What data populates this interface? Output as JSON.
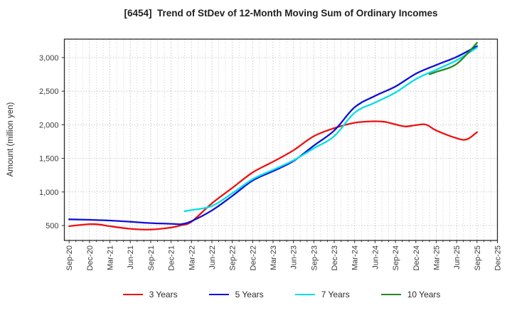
{
  "chart_data": {
    "type": "line",
    "title": "[6454]  Trend of StDev of 12-Month Moving Sum of Ordinary Incomes",
    "ylabel": "Amount (million yen)",
    "x_unit": "months since Sep-2020",
    "x_tick_step_months": 3,
    "x_tick_labels": [
      "Sep-20",
      "Dec-20",
      "Mar-21",
      "Jun-21",
      "Sep-21",
      "Dec-21",
      "Mar-22",
      "Jun-22",
      "Sep-22",
      "Dec-22",
      "Mar-23",
      "Jun-23",
      "Sep-23",
      "Dec-23",
      "Mar-24",
      "Jun-24",
      "Sep-24",
      "Dec-24",
      "Mar-25",
      "Jun-25",
      "Sep-25",
      "Dec-25"
    ],
    "y_ticks": [
      500,
      1000,
      1500,
      2000,
      2500,
      3000
    ],
    "y_tick_labels": [
      "500",
      "1,000",
      "1,500",
      "2,000",
      "2,500",
      "3,000"
    ],
    "xlim_months": [
      -0.7,
      63.0
    ],
    "ylim": [
      278,
      3275
    ],
    "grid": true,
    "grid_style": "dotted gray, monthly vertical + 500-step horizontal",
    "legend_position": "bottom center",
    "series": [
      {
        "name": "3 Years",
        "color": "#ee1111",
        "points": [
          [
            0,
            490
          ],
          [
            1.5,
            507
          ],
          [
            3,
            520
          ],
          [
            4.5,
            514
          ],
          [
            6,
            490
          ],
          [
            9,
            452
          ],
          [
            12,
            440
          ],
          [
            15,
            470
          ],
          [
            16.5,
            505
          ],
          [
            18,
            557
          ],
          [
            21,
            830
          ],
          [
            24,
            1060
          ],
          [
            27,
            1290
          ],
          [
            30,
            1450
          ],
          [
            33,
            1620
          ],
          [
            36,
            1830
          ],
          [
            39,
            1950
          ],
          [
            42,
            2030
          ],
          [
            45,
            2052
          ],
          [
            46.5,
            2042
          ],
          [
            48,
            2005
          ],
          [
            49.5,
            1975
          ],
          [
            51,
            1995
          ],
          [
            52.5,
            2002
          ],
          [
            54,
            1915
          ],
          [
            57,
            1800
          ],
          [
            58.5,
            1783
          ],
          [
            60,
            1890
          ]
        ]
      },
      {
        "name": "5 Years",
        "color": "#0f0fd8",
        "points": [
          [
            0,
            592
          ],
          [
            3,
            585
          ],
          [
            6,
            575
          ],
          [
            9,
            556
          ],
          [
            12,
            536
          ],
          [
            15,
            526
          ],
          [
            16.5,
            521
          ],
          [
            18,
            565
          ],
          [
            21,
            725
          ],
          [
            24,
            940
          ],
          [
            27,
            1170
          ],
          [
            30,
            1310
          ],
          [
            33,
            1460
          ],
          [
            36,
            1690
          ],
          [
            39,
            1915
          ],
          [
            42,
            2260
          ],
          [
            45,
            2430
          ],
          [
            48,
            2570
          ],
          [
            51,
            2760
          ],
          [
            54,
            2890
          ],
          [
            57,
            3010
          ],
          [
            60,
            3170
          ]
        ]
      },
      {
        "name": "7 Years",
        "color": "#00e0e8",
        "points": [
          [
            17,
            712
          ],
          [
            18,
            730
          ],
          [
            21,
            790
          ],
          [
            24,
            980
          ],
          [
            27,
            1190
          ],
          [
            30,
            1330
          ],
          [
            33,
            1470
          ],
          [
            36,
            1650
          ],
          [
            39,
            1830
          ],
          [
            42,
            2180
          ],
          [
            45,
            2330
          ],
          [
            48,
            2480
          ],
          [
            51,
            2680
          ],
          [
            54,
            2820
          ],
          [
            57,
            2960
          ],
          [
            60,
            3150
          ]
        ]
      },
      {
        "name": "10 Years",
        "color": "#228b22",
        "points": [
          [
            53,
            2752
          ],
          [
            54,
            2788
          ],
          [
            57,
            2905
          ],
          [
            60,
            3220
          ]
        ]
      }
    ]
  }
}
